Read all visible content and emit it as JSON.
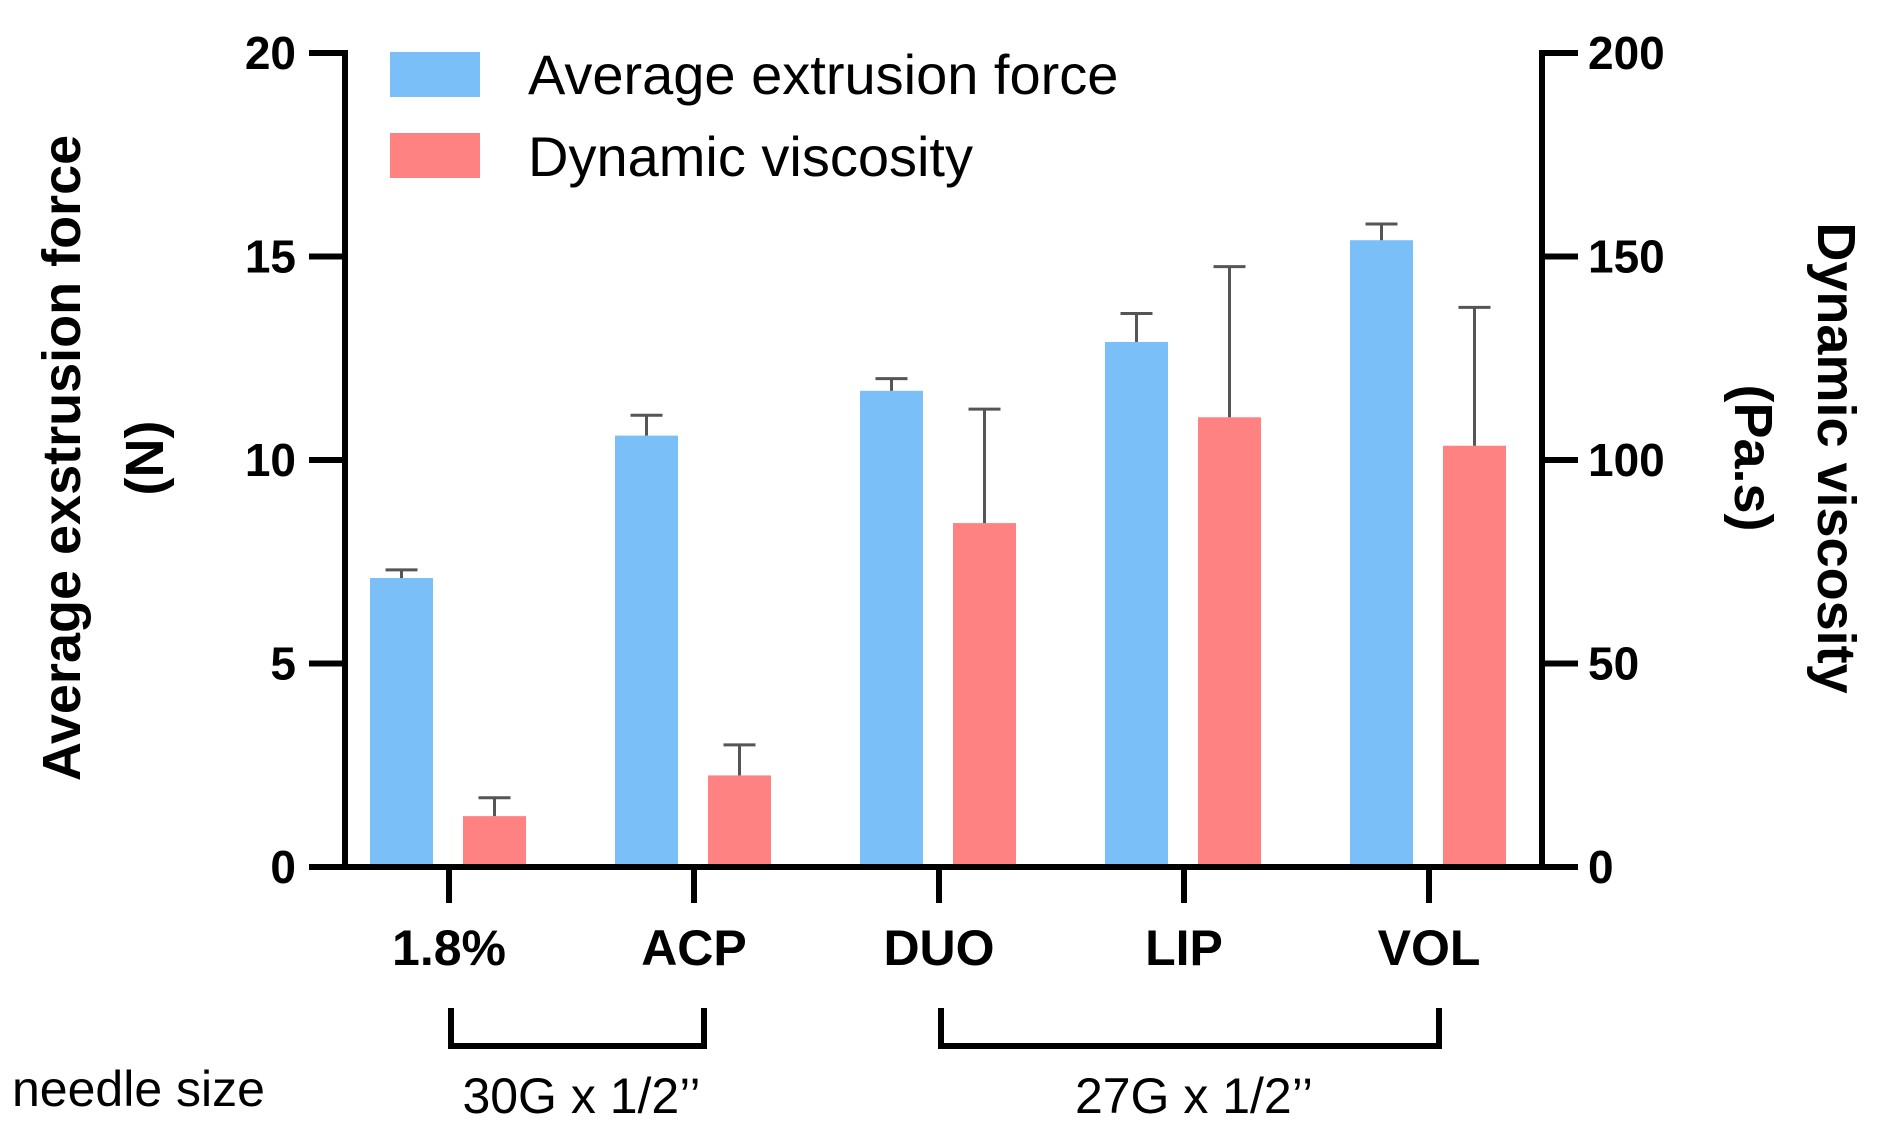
{
  "chart_data": {
    "type": "bar",
    "categories": [
      "1.8%",
      "ACP",
      "DUO",
      "LIP",
      "VOL"
    ],
    "series": [
      {
        "name": "Average extrusion force",
        "axis": "left",
        "color": "#7bbff9",
        "values": [
          7.1,
          10.6,
          11.7,
          12.9,
          15.4
        ],
        "errors": [
          0.2,
          0.5,
          0.3,
          0.7,
          0.4
        ]
      },
      {
        "name": "Dynamic viscosity",
        "axis": "right",
        "color": "#ff8282",
        "values": [
          12.5,
          22.5,
          84.5,
          110.5,
          103.5
        ],
        "errors": [
          4.5,
          7.5,
          28,
          37,
          34
        ]
      }
    ],
    "y_left": {
      "label_line1": "Average exstrusion force",
      "label_line2": "(N)",
      "ylim": [
        0,
        20
      ],
      "ticks": [
        "0",
        "5",
        "10",
        "15",
        "20"
      ]
    },
    "y_right": {
      "label_line1": "Dynamic viscosity",
      "label_line2": "(Pa.s)",
      "ylim": [
        0,
        200
      ],
      "ticks": [
        "0",
        "50",
        "100",
        "150",
        "200"
      ]
    },
    "legend_position": "top-left",
    "groups": {
      "row_label": "needle size",
      "items": [
        {
          "label": "30G x 1/2’’",
          "from": "1.8%",
          "to": "ACP"
        },
        {
          "label": "27G x 1/2’’",
          "from": "DUO",
          "to": "VOL"
        }
      ]
    }
  }
}
